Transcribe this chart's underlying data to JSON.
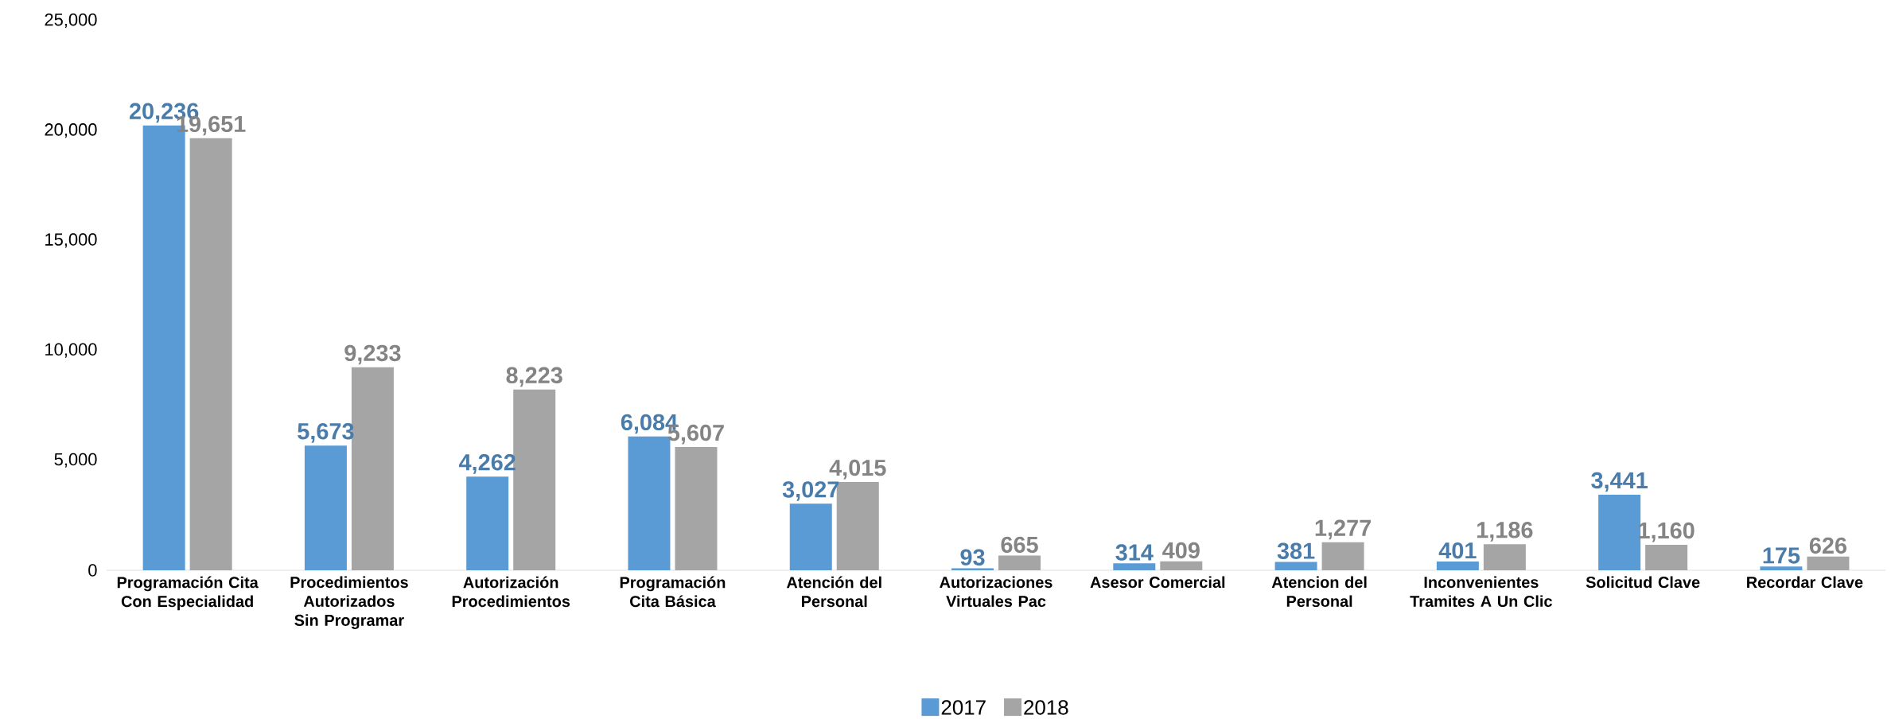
{
  "chart_data": {
    "type": "bar",
    "categories": [
      "Programación Cita Con Especialidad",
      "Procedimientos Autorizados Sin Programar",
      "Autorización Procedimientos",
      "Programación Cita Básica",
      "Atención del Personal",
      "Autorizaciones Virtuales Pac",
      "Asesor Comercial",
      "Atencion del Personal",
      "Inconvenientes Tramites A Un Clic",
      "Solicitud Clave",
      "Recordar Clave"
    ],
    "series": [
      {
        "name": "2017",
        "color": "#5b9bd5",
        "values": [
          20236,
          5673,
          4262,
          6084,
          3027,
          93,
          314,
          381,
          401,
          3441,
          175
        ],
        "value_labels": [
          "20,236",
          "5,673",
          "4,262",
          "6,084",
          "3,027",
          "93",
          "314",
          "381",
          "401",
          "3,441",
          "175"
        ]
      },
      {
        "name": "2018",
        "color": "#a5a5a5",
        "values": [
          19651,
          9233,
          8223,
          5607,
          4015,
          665,
          409,
          1277,
          1186,
          1160,
          626
        ],
        "value_labels": [
          "19,651",
          "9,233",
          "8,223",
          "5,607",
          "4,015",
          "665",
          "409",
          "1,277",
          "1,186",
          "1,160",
          "626"
        ]
      }
    ],
    "ylim": [
      0,
      25000
    ],
    "yticks": [
      {
        "value": 0,
        "label": "0"
      },
      {
        "value": 5000,
        "label": "5,000"
      },
      {
        "value": 10000,
        "label": "10,000"
      },
      {
        "value": 15000,
        "label": "15,000"
      },
      {
        "value": 20000,
        "label": "20,000"
      },
      {
        "value": 25000,
        "label": "25,000"
      }
    ],
    "legend": "bottom"
  }
}
